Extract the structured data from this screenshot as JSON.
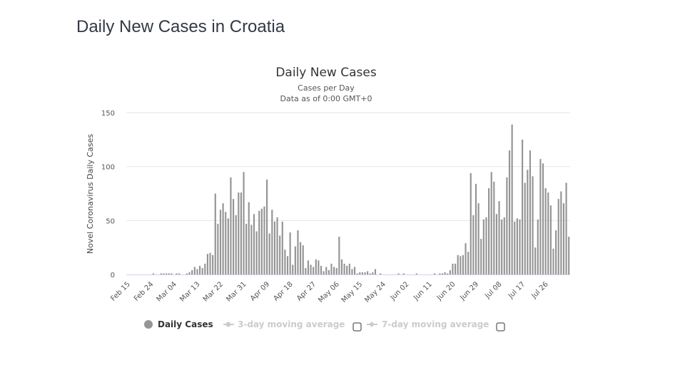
{
  "page": {
    "title": "Daily New Cases in Croatia"
  },
  "colors": {
    "bar": "#959595",
    "grid": "#e6e6e6",
    "axis": "#ccd6eb",
    "legend_active": "#333333",
    "legend_inactive": "#cccccc"
  },
  "legend": {
    "items": [
      {
        "label": "Daily Cases",
        "icon": "circle-marker-icon",
        "active": true
      },
      {
        "label": "3-day moving average",
        "icon": "line-marker-icon",
        "active": false
      },
      {
        "label": "7-day moving average",
        "icon": "line-marker-icon",
        "active": false
      }
    ]
  },
  "chart_data": {
    "type": "bar",
    "title": "Daily New Cases",
    "subtitle": [
      "Cases per Day",
      "Data as of 0:00 GMT+0"
    ],
    "xlabel": "",
    "ylabel": "Novel Coronavirus Daily Cases",
    "ylim": [
      0,
      150
    ],
    "yticks": [
      0,
      50,
      100,
      150
    ],
    "grid": true,
    "legend_position": "bottom-left",
    "start_date": "Feb 15",
    "xtick_labels": [
      "Feb 15",
      "Feb 24",
      "Mar 04",
      "Mar 13",
      "Mar 22",
      "Mar 31",
      "Apr 09",
      "Apr 18",
      "Apr 27",
      "May 06",
      "May 15",
      "May 24",
      "Jun 02",
      "Jun 11",
      "Jun 20",
      "Jun 29",
      "Jul 08",
      "Jul 17",
      "Jul 26"
    ],
    "xtick_every_days": 9,
    "values": [
      0,
      0,
      0,
      0,
      0,
      0,
      0,
      0,
      0,
      0,
      1,
      0,
      0,
      1,
      1,
      1,
      1,
      1,
      0,
      1,
      1,
      0,
      0,
      1,
      2,
      4,
      7,
      5,
      8,
      6,
      10,
      19,
      20,
      18,
      75,
      47,
      60,
      66,
      58,
      52,
      90,
      70,
      55,
      76,
      76,
      95,
      47,
      67,
      46,
      56,
      40,
      59,
      61,
      63,
      88,
      38,
      60,
      49,
      53,
      36,
      49,
      23,
      17,
      39,
      9,
      26,
      41,
      30,
      27,
      6,
      13,
      9,
      7,
      14,
      13,
      8,
      3,
      7,
      4,
      10,
      7,
      6,
      35,
      14,
      10,
      8,
      10,
      5,
      7,
      1,
      2,
      2,
      2,
      3,
      1,
      2,
      5,
      0,
      1,
      0,
      0,
      0,
      0,
      0,
      0,
      1,
      0,
      1,
      0,
      0,
      0,
      0,
      1,
      0,
      0,
      0,
      0,
      0,
      0,
      1,
      0,
      1,
      1,
      2,
      1,
      4,
      10,
      10,
      18,
      17,
      18,
      29,
      21,
      94,
      55,
      84,
      66,
      33,
      51,
      53,
      80,
      95,
      86,
      56,
      68,
      51,
      53,
      90,
      115,
      139,
      49,
      52,
      51,
      125,
      85,
      97,
      115,
      91,
      25,
      51,
      107,
      103,
      80,
      76,
      64,
      24,
      41,
      70,
      77,
      66,
      85,
      35
    ]
  }
}
